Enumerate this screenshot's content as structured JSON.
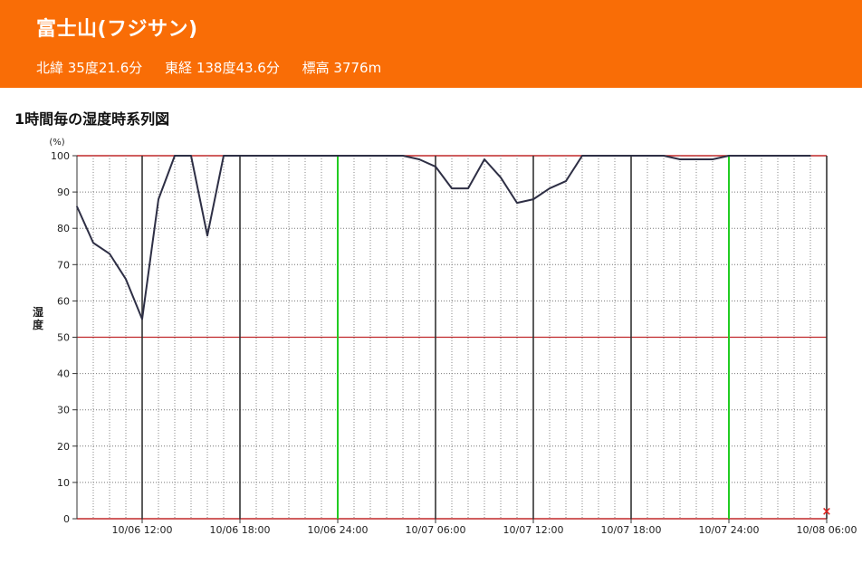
{
  "header": {
    "title": "富士山(フジサン)",
    "lat": "北緯 35度21.6分",
    "lon": "東経 138度43.6分",
    "elevation": "標高 3776m"
  },
  "section_title": "1時間毎の湿度時系列図",
  "colors": {
    "header_bg": "#f96d06",
    "line": "#2e2f45",
    "hundred_line": "#c0282a",
    "midline": "#c0282a",
    "day_boundary": "#22cc22",
    "six_hour_line": "#333333",
    "missing_marker": "#e0201c"
  },
  "chart_data": {
    "type": "line",
    "title": "",
    "ylabel": "湿度",
    "yunit": "(%)",
    "ylim": [
      0,
      100
    ],
    "yticks": [
      0,
      10,
      20,
      30,
      40,
      50,
      60,
      70,
      80,
      90,
      100
    ],
    "xticks": [
      "10/06 12:00",
      "10/06 18:00",
      "10/06 24:00",
      "10/07 06:00",
      "10/07 12:00",
      "10/07 18:00",
      "10/07 24:00",
      "10/08 06:00"
    ],
    "x": [
      "10/06 08:00",
      "10/06 09:00",
      "10/06 10:00",
      "10/06 11:00",
      "10/06 12:00",
      "10/06 13:00",
      "10/06 14:00",
      "10/06 15:00",
      "10/06 16:00",
      "10/06 17:00",
      "10/06 18:00",
      "10/06 19:00",
      "10/06 20:00",
      "10/06 21:00",
      "10/06 22:00",
      "10/06 23:00",
      "10/06 24:00",
      "10/07 01:00",
      "10/07 02:00",
      "10/07 03:00",
      "10/07 04:00",
      "10/07 05:00",
      "10/07 06:00",
      "10/07 07:00",
      "10/07 08:00",
      "10/07 09:00",
      "10/07 10:00",
      "10/07 11:00",
      "10/07 12:00",
      "10/07 13:00",
      "10/07 14:00",
      "10/07 15:00",
      "10/07 16:00",
      "10/07 17:00",
      "10/07 18:00",
      "10/07 19:00",
      "10/07 20:00",
      "10/07 21:00",
      "10/07 22:00",
      "10/07 23:00",
      "10/07 24:00",
      "10/08 01:00",
      "10/08 02:00",
      "10/08 03:00",
      "10/08 04:00",
      "10/08 05:00",
      "10/08 06:00"
    ],
    "series": [
      {
        "values": [
          86,
          76,
          73,
          66,
          55,
          88,
          100,
          100,
          78,
          100,
          100,
          100,
          100,
          100,
          100,
          100,
          100,
          100,
          100,
          100,
          100,
          99,
          97,
          91,
          91,
          99,
          94,
          87,
          88,
          91,
          93,
          100,
          100,
          100,
          100,
          100,
          100,
          99,
          99,
          99,
          100,
          100,
          100,
          100,
          100,
          100,
          null
        ]
      }
    ],
    "missing_marker": "×"
  }
}
